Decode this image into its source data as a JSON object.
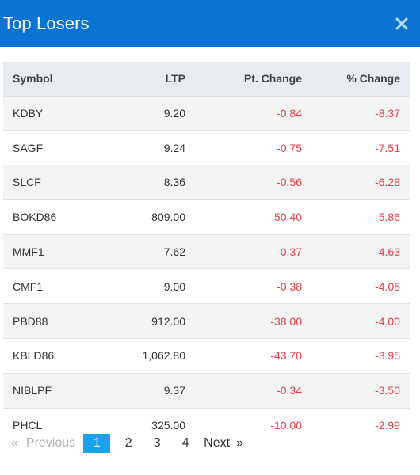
{
  "header": {
    "title": "Top Losers",
    "close_icon": "close-icon"
  },
  "table": {
    "columns": [
      "Symbol",
      "LTP",
      "Pt. Change",
      "% Change"
    ],
    "rows": [
      [
        "KDBY",
        "9.20",
        "-0.84",
        "-8.37"
      ],
      [
        "SAGF",
        "9.24",
        "-0.75",
        "-7.51"
      ],
      [
        "SLCF",
        "8.36",
        "-0.56",
        "-6.28"
      ],
      [
        "BOKD86",
        "809.00",
        "-50.40",
        "-5.86"
      ],
      [
        "MMF1",
        "7.62",
        "-0.37",
        "-4.63"
      ],
      [
        "CMF1",
        "9.00",
        "-0.38",
        "-4.05"
      ],
      [
        "PBD88",
        "912.00",
        "-38.00",
        "-4.00"
      ],
      [
        "KBLD86",
        "1,062.80",
        "-43.70",
        "-3.95"
      ],
      [
        "NIBLPF",
        "9.37",
        "-0.34",
        "-3.50"
      ],
      [
        "PHCL",
        "325.00",
        "-10.00",
        "-2.99"
      ]
    ]
  },
  "pagination": {
    "prev_arrow": "«",
    "prev_label": "Previous",
    "pages": [
      "1",
      "2",
      "3",
      "4"
    ],
    "active_page": "1",
    "next_label": "Next",
    "next_arrow": "»"
  },
  "colors": {
    "header_bg": "#0b74d3",
    "negative": "#e8404a",
    "active_page": "#1aa3ec"
  }
}
